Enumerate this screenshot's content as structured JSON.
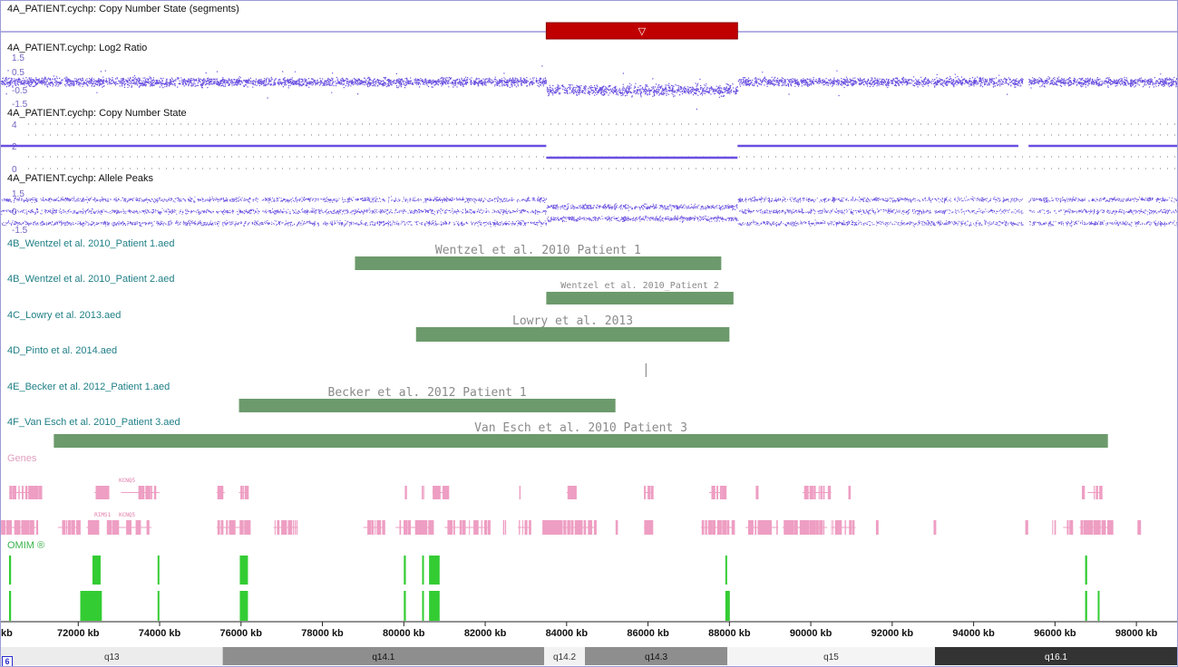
{
  "tracks": {
    "segments_label": "4A_PATIENT.cychp: Copy Number State (segments)",
    "log2_label": "4A_PATIENT.cychp: Log2 Ratio",
    "cn_label": "4A_PATIENT.cychp: Copy Number State",
    "allele_label": "4A_PATIENT.cychp: Allele Peaks",
    "genes_label": "Genes",
    "omim_label": "OMIM ®"
  },
  "segment": {
    "start_kb": 83500,
    "end_kb": 88200,
    "color": "#c00000",
    "marker": "▽"
  },
  "log2_axis": [
    "1.5",
    "0.5",
    "-0.5",
    "-1.5"
  ],
  "cn_axis": [
    "4",
    "2",
    "0"
  ],
  "allele_axis": [
    "1.5",
    "0",
    "-1.5"
  ],
  "features": [
    {
      "file": "4B_Wentzel et al. 2010_Patient 1.aed",
      "name": "Wentzel et al. 2010 Patient 1",
      "start_kb": 78800,
      "end_kb": 87800
    },
    {
      "file": "4B_Wentzel et al. 2010_Patient 2.aed",
      "name": "Wentzel et al. 2010_Patient 2",
      "start_kb": 83500,
      "end_kb": 88100
    },
    {
      "file": "4C_Lowry et al. 2013.aed",
      "name": "Lowry et al. 2013",
      "start_kb": 80300,
      "end_kb": 88000
    },
    {
      "file": "4D_Pinto et al. 2014.aed",
      "name": "",
      "start_kb": 85950,
      "end_kb": 85960
    },
    {
      "file": "4E_Becker et al. 2012_Patient 1.aed",
      "name": "Becker et al. 2012 Patient 1",
      "start_kb": 75950,
      "end_kb": 85200
    },
    {
      "file": "4F_Van Esch et al. 2010_Patient 3.aed",
      "name": "Van Esch et al. 2010 Patient 3",
      "start_kb": 71400,
      "end_kb": 97300
    }
  ],
  "gene_labels": [
    {
      "text": "KCNQ5",
      "kb": 73200,
      "row": 1
    },
    {
      "text": "RIMS1",
      "kb": 72600,
      "row": 2
    },
    {
      "text": "KCNQ5",
      "kb": 73200,
      "row": 2
    }
  ],
  "axis_ticks": [
    "kb",
    "72000 kb",
    "74000 kb",
    "76000 kb",
    "78000 kb",
    "80000 kb",
    "82000 kb",
    "84000 kb",
    "86000 kb",
    "88000 kb",
    "90000 kb",
    "92000 kb",
    "94000 kb",
    "96000 kb",
    "98000 kb"
  ],
  "cytobands": [
    {
      "name": "q13",
      "start_kb": 70100,
      "end_kb": 75550,
      "color": "#ececec",
      "text": "#333333"
    },
    {
      "name": "q14.1",
      "start_kb": 75550,
      "end_kb": 83450,
      "color": "#8e8e8e",
      "text": "#111111"
    },
    {
      "name": "q14.2",
      "start_kb": 83450,
      "end_kb": 84450,
      "color": "#f2f2f2",
      "text": "#333333"
    },
    {
      "name": "q14.3",
      "start_kb": 84450,
      "end_kb": 87950,
      "color": "#8e8e8e",
      "text": "#111111"
    },
    {
      "name": "q15",
      "start_kb": 87950,
      "end_kb": 93050,
      "color": "#f4f4f4",
      "text": "#333333"
    },
    {
      "name": "q16.1",
      "start_kb": 93050,
      "end_kb": 99000,
      "color": "#333333",
      "text": "#ffffff"
    }
  ],
  "chromosome": "6",
  "colors": {
    "probe": "#6a4fe0",
    "feature": "#6c9a6c",
    "gene": "#ee9ec3",
    "omim": "#33cc33",
    "cn_line": "#6a4fe0"
  }
}
